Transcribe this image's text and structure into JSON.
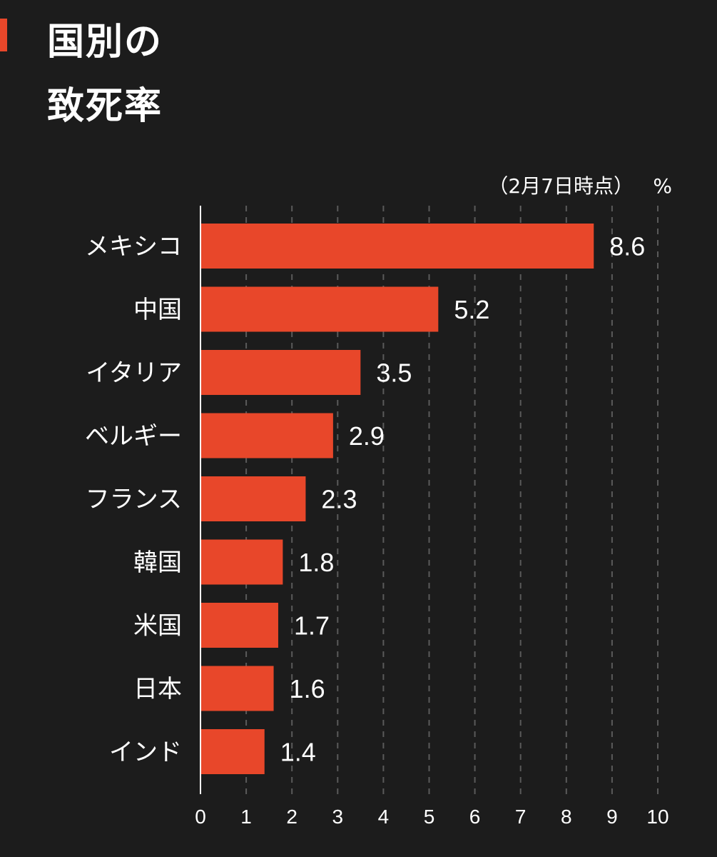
{
  "colors": {
    "background": "#1c1c1c",
    "bar": "#e8472a",
    "accent": "#e8472a",
    "text": "#ffffff",
    "grid": "#5a5a5a",
    "axis": "#ffffff"
  },
  "chart_data": {
    "type": "bar",
    "orientation": "horizontal",
    "title_lines": [
      "国別の",
      "致死率"
    ],
    "note": "（2月7日時点）",
    "unit": "%",
    "categories": [
      "メキシコ",
      "中国",
      "イタリア",
      "ベルギー",
      "フランス",
      "韓国",
      "米国",
      "日本",
      "インド"
    ],
    "values": [
      8.6,
      5.2,
      3.5,
      2.9,
      2.3,
      1.8,
      1.7,
      1.6,
      1.4
    ],
    "value_labels": [
      "8.6",
      "5.2",
      "3.5",
      "2.9",
      "2.3",
      "1.8",
      "1.7",
      "1.6",
      "1.4"
    ],
    "xlim": [
      0,
      10
    ],
    "x_ticks": [
      "0",
      "1",
      "2",
      "3",
      "4",
      "5",
      "6",
      "7",
      "8",
      "9",
      "10"
    ],
    "grid": "vertical-dashed",
    "legend": "none"
  }
}
